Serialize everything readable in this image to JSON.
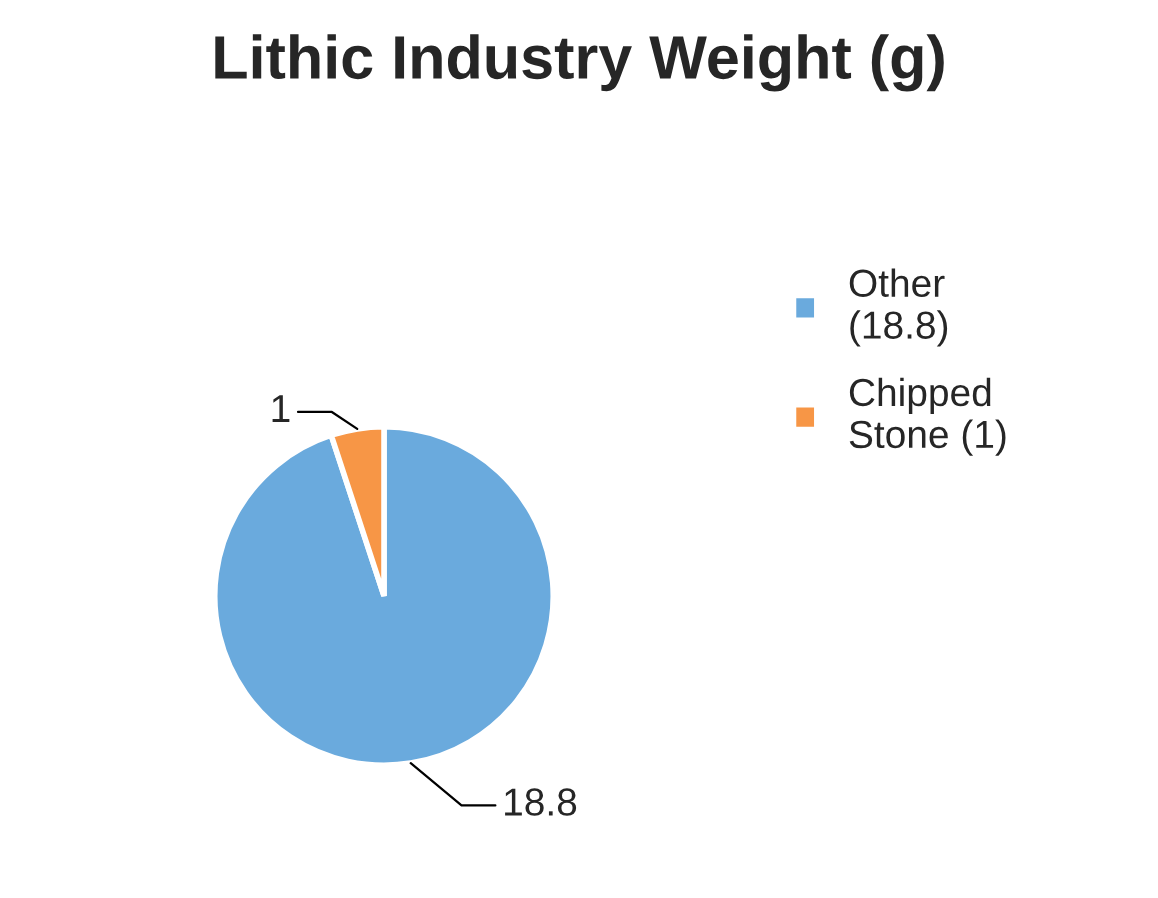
{
  "chart_data": {
    "type": "pie",
    "title": "Lithic Industry Weight (g)",
    "categories": [
      "Other (18.8)",
      "Chipped Stone (1)"
    ],
    "values": [
      18.8,
      1
    ],
    "colors": [
      "#6aaadd",
      "#f79646"
    ],
    "data_labels": true,
    "legend": "right"
  }
}
